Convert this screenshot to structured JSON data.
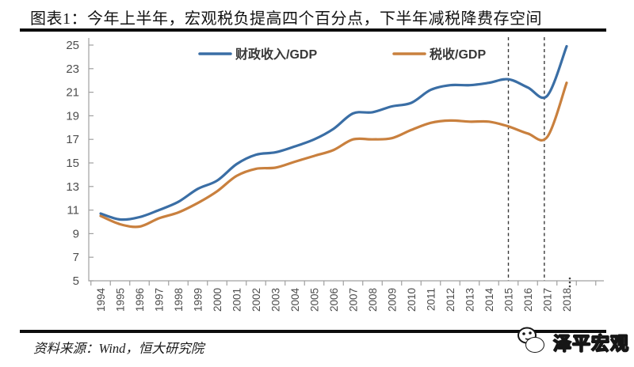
{
  "page": {
    "title": "图表1：今年上半年，宏观税负提高四个百分点，下半年减税降费存空间",
    "source": "资料来源：Wind，恒大研究院",
    "watermark": "泽平宏观"
  },
  "colors": {
    "fiscal_line": "#3A6EA5",
    "tax_line": "#C9803E",
    "axis": "#A0A0A0",
    "tick_label": "#4D4D4D",
    "dashed_marker": "#3A3A3A",
    "rule": "#0D0D0D"
  },
  "chart_data": {
    "type": "line",
    "title": "图表1：今年上半年，宏观税负提高四个百分点，下半年减税降费存空间",
    "xlabel": "",
    "ylabel": "",
    "x": [
      1994,
      1995,
      1996,
      1997,
      1998,
      1999,
      2000,
      2001,
      2002,
      2003,
      2004,
      2005,
      2006,
      2007,
      2008,
      2009,
      2010,
      2011,
      2012,
      2013,
      2014,
      2015,
      2016,
      2017,
      2018
    ],
    "series": [
      {
        "name": "财政收入/GDP",
        "color": "#3A6EA5",
        "values": [
          10.7,
          10.2,
          10.4,
          11.0,
          11.7,
          12.8,
          13.5,
          14.9,
          15.7,
          15.9,
          16.4,
          17.0,
          17.9,
          19.2,
          19.3,
          19.8,
          20.1,
          21.2,
          21.6,
          21.6,
          21.8,
          22.1,
          21.4,
          20.7,
          24.9
        ]
      },
      {
        "name": "税收/GDP",
        "color": "#C9803E",
        "values": [
          10.5,
          9.8,
          9.6,
          10.3,
          10.8,
          11.6,
          12.6,
          13.9,
          14.5,
          14.6,
          15.1,
          15.6,
          16.1,
          17.0,
          17.0,
          17.1,
          17.8,
          18.4,
          18.6,
          18.5,
          18.5,
          18.1,
          17.5,
          17.2,
          21.8
        ]
      }
    ],
    "ylim": [
      5,
      25
    ],
    "y_tick_step": 2,
    "grid": false,
    "legend_position": "top",
    "vertical_dashed_markers": [
      2015,
      2016.85
    ],
    "x_axis_continuation_mark": "⋮"
  }
}
